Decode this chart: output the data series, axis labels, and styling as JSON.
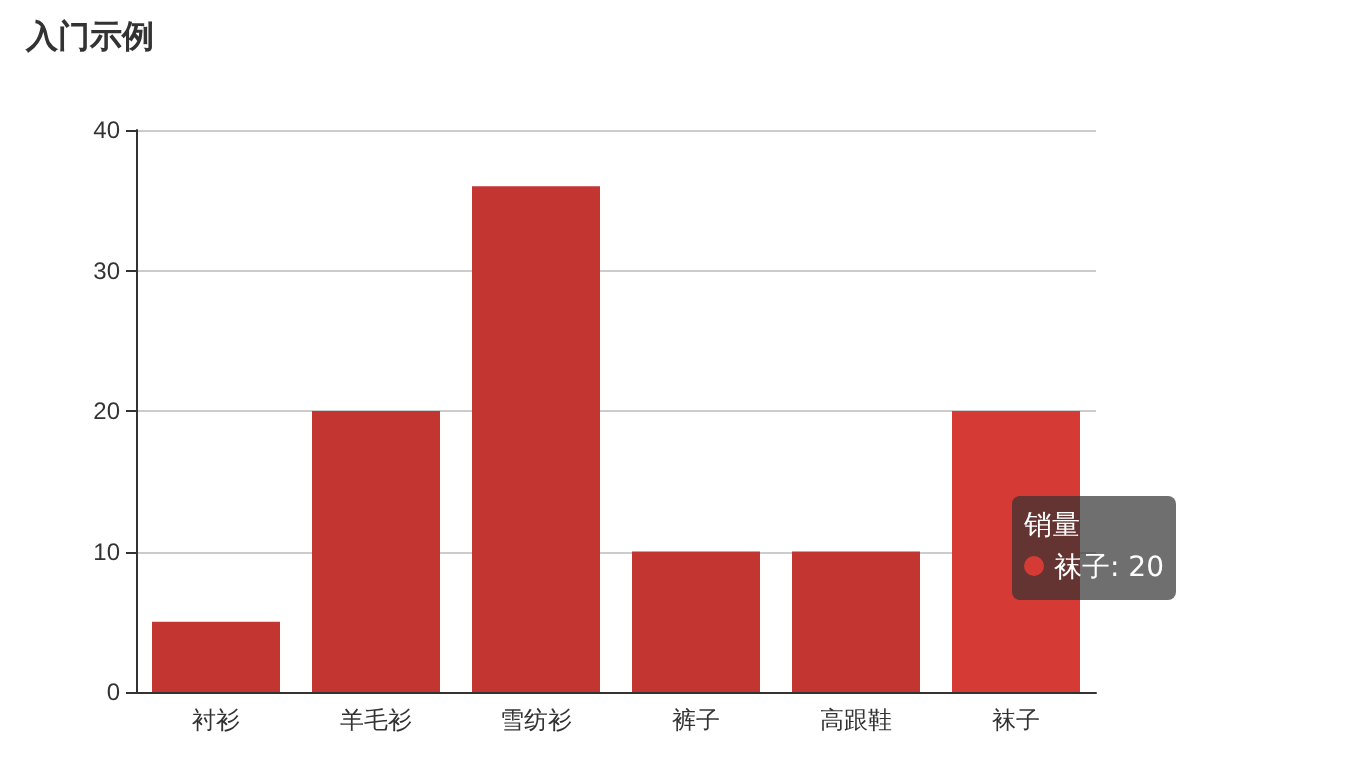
{
  "chart_data": {
    "type": "bar",
    "title": "入门示例",
    "categories": [
      "衬衫",
      "羊毛衫",
      "雪纺衫",
      "裤子",
      "高跟鞋",
      "袜子"
    ],
    "series": [
      {
        "name": "销量",
        "colors": [
          "#c23531",
          "#c23531",
          "#c23531",
          "#c23531",
          "#c23531",
          "#d53a35"
        ],
        "values": [
          5,
          20,
          36,
          10,
          10,
          20
        ]
      }
    ],
    "annotations": [
      "袜子: 20"
    ],
    "ylim": [
      0,
      40
    ],
    "yticks": [
      0,
      10,
      20,
      30,
      40
    ],
    "grid": "y",
    "legend": false
  }
}
